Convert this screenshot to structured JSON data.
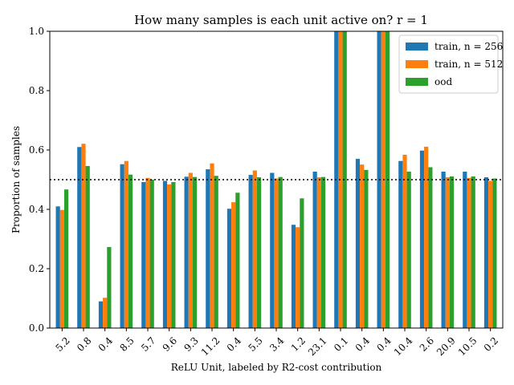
{
  "chart_data": {
    "type": "bar",
    "title": "How many samples is each unit active on? r = 1",
    "xlabel": "ReLU Unit, labeled by R2-cost contribution",
    "ylabel": "Proportion of samples",
    "ylim": [
      0,
      1.0
    ],
    "yticks": [
      "0.0",
      "0.2",
      "0.4",
      "0.6",
      "0.8",
      "1.0"
    ],
    "reference_line": 0.5,
    "categories": [
      "5.2",
      "0.8",
      "0.4",
      "8.5",
      "5.7",
      "9.6",
      "9.3",
      "11.2",
      "0.4",
      "5.5",
      "3.4",
      "1.2",
      "23.1",
      "0.1",
      "0.4",
      "0.4",
      "10.4",
      "2.6",
      "20.9",
      "10.5",
      "0.2"
    ],
    "series": [
      {
        "name": "train, n = 256",
        "color": "#1f77b4",
        "values": [
          0.41,
          0.61,
          0.09,
          0.552,
          0.492,
          0.496,
          0.51,
          0.535,
          0.402,
          0.516,
          0.523,
          0.348,
          0.527,
          1.0,
          0.57,
          1.0,
          0.563,
          0.598,
          0.527,
          0.527,
          0.508
        ]
      },
      {
        "name": "train, n = 512",
        "color": "#ff7f0e",
        "values": [
          0.398,
          0.621,
          0.102,
          0.563,
          0.506,
          0.484,
          0.523,
          0.555,
          0.424,
          0.531,
          0.504,
          0.34,
          0.508,
          1.0,
          0.551,
          1.0,
          0.584,
          0.611,
          0.508,
          0.506,
          0.496
        ]
      },
      {
        "name": "ood",
        "color": "#2ca02c",
        "values": [
          0.467,
          0.546,
          0.273,
          0.517,
          0.5,
          0.492,
          0.509,
          0.513,
          0.456,
          0.508,
          0.509,
          0.437,
          0.509,
          1.0,
          0.533,
          1.0,
          0.527,
          0.542,
          0.511,
          0.511,
          0.504
        ]
      }
    ],
    "legend_position": "top-right"
  }
}
